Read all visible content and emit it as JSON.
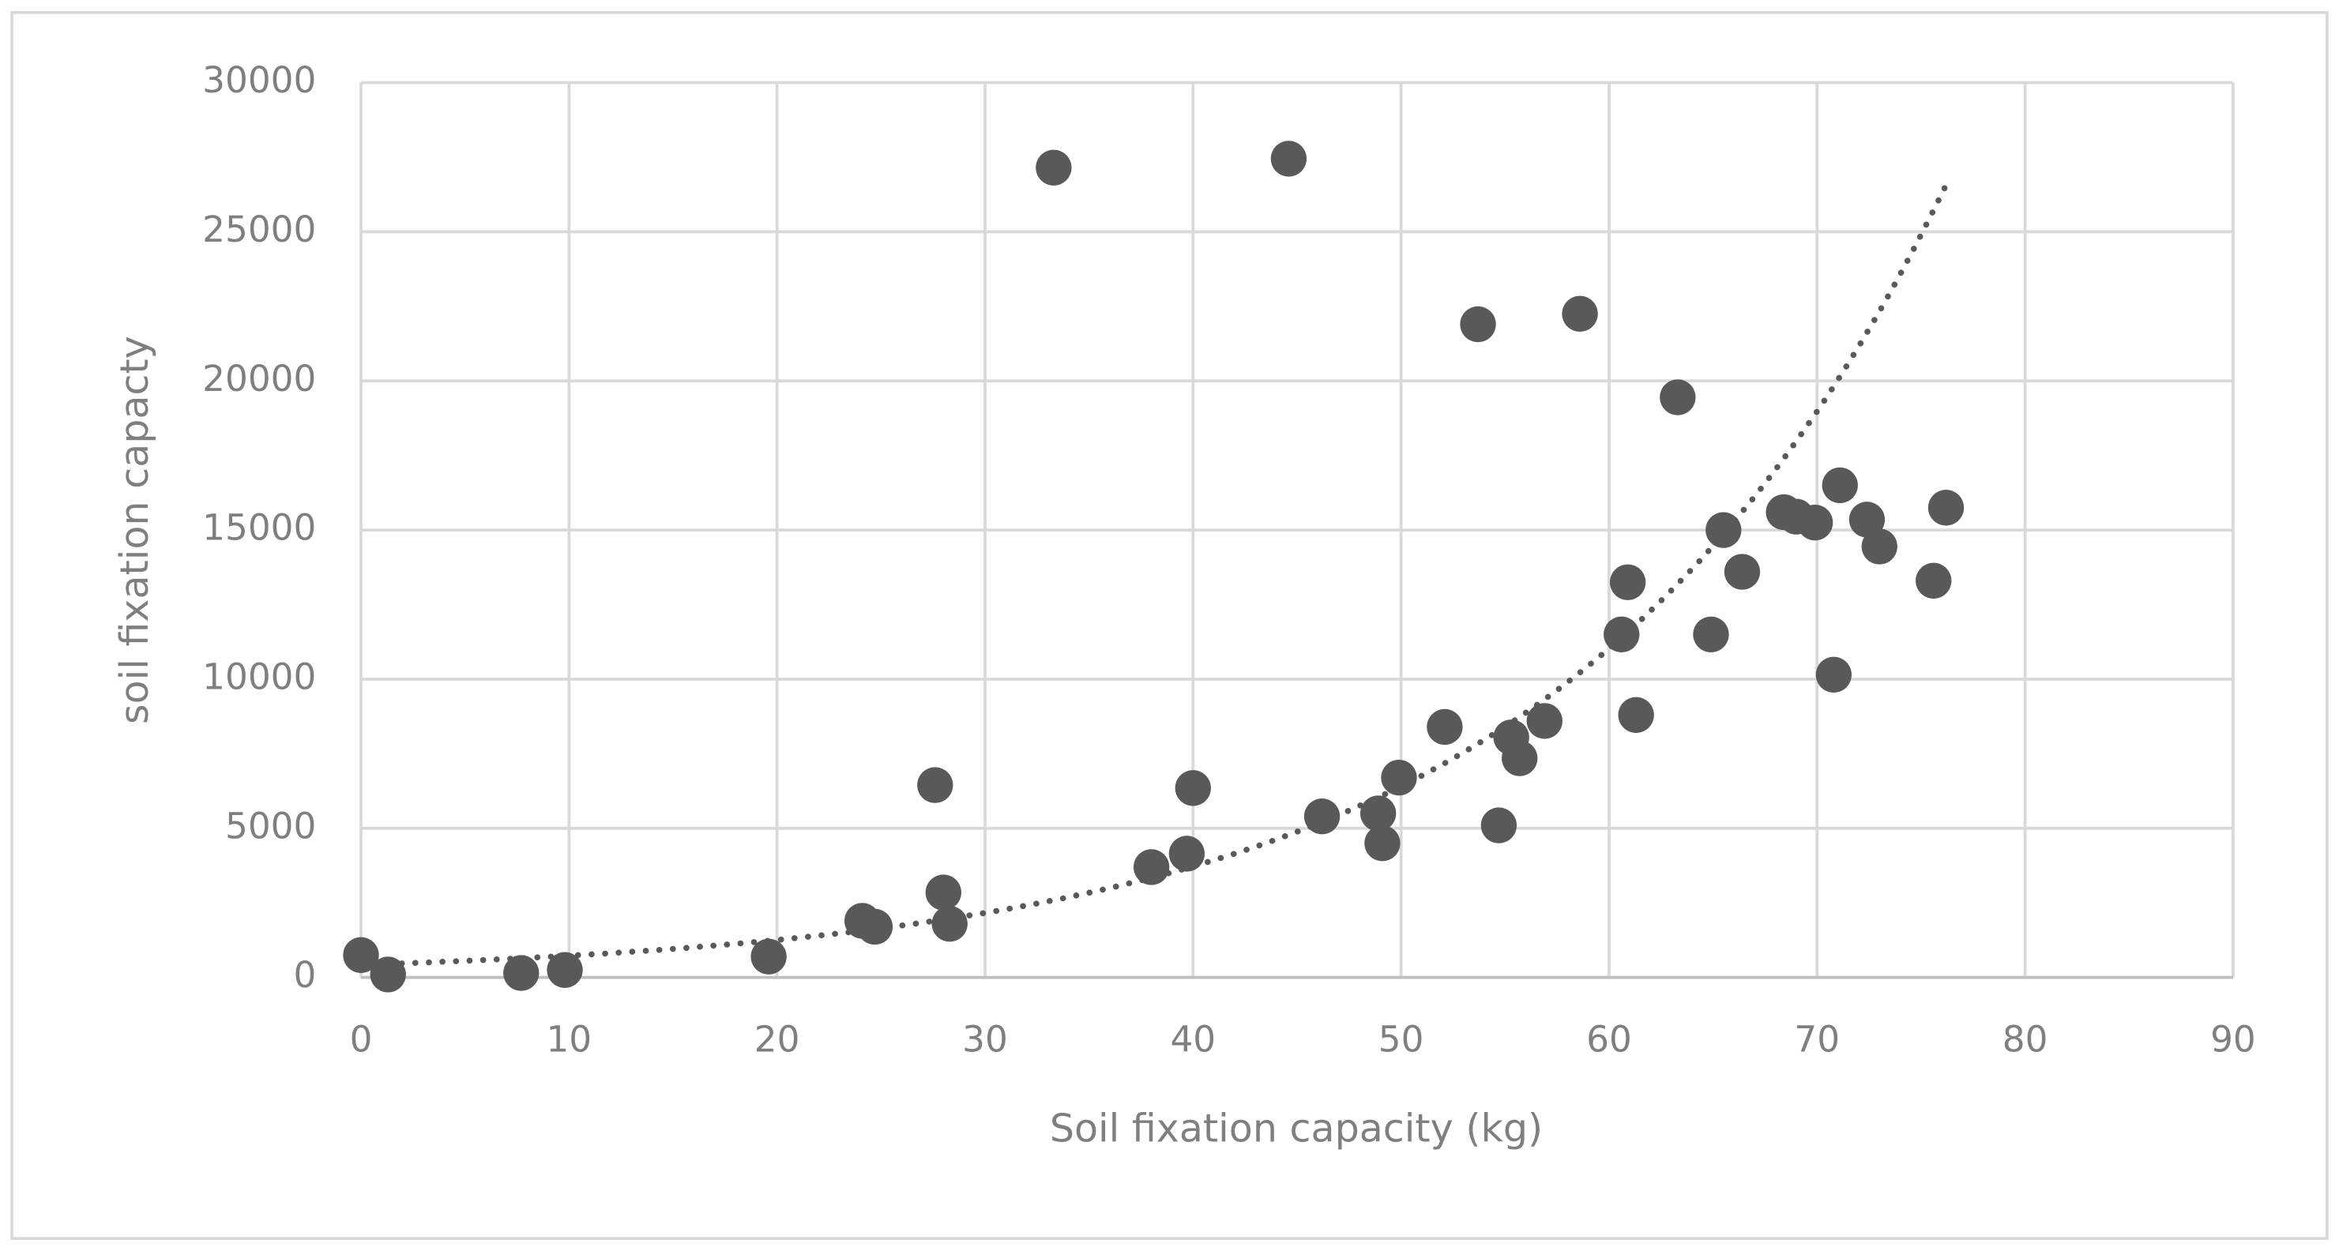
{
  "chart_data": {
    "type": "scatter",
    "x_label": "Soil fixation capacity (kg)",
    "y_label": "soil fixation capacty",
    "x": [
      0,
      1.3,
      7.7,
      9.8,
      19.6,
      24.1,
      24.7,
      27.6,
      28.0,
      28.3,
      33.3,
      38.0,
      39.7,
      40.0,
      44.6,
      46.2,
      48.9,
      49.1,
      49.9,
      52.1,
      53.7,
      54.7,
      55.3,
      55.7,
      56.9,
      58.6,
      60.6,
      60.9,
      61.3,
      63.3,
      64.9,
      65.5,
      66.4,
      68.4,
      69.0,
      69.9,
      70.8,
      71.1,
      72.4,
      73.0,
      75.6,
      76.2
    ],
    "values": [
      750,
      100,
      150,
      250,
      700,
      1900,
      1700,
      6450,
      2850,
      1800,
      27150,
      3700,
      4150,
      6350,
      27450,
      5400,
      5500,
      4500,
      6700,
      8400,
      21900,
      5100,
      8050,
      7350,
      8600,
      22250,
      11500,
      13250,
      8800,
      19450,
      11500,
      15000,
      13600,
      15600,
      15450,
      15250,
      10150,
      16500,
      15350,
      14450,
      13300,
      15750
    ],
    "color": "#595959",
    "trendline": "exponential",
    "xlim": [
      0,
      90
    ],
    "xticks": [
      0,
      10,
      20,
      30,
      40,
      50,
      60,
      70,
      80,
      90
    ],
    "ylim": [
      0,
      30000
    ],
    "yticks": [
      0,
      5000,
      10000,
      15000,
      20000,
      25000,
      30000
    ],
    "grid": true
  }
}
